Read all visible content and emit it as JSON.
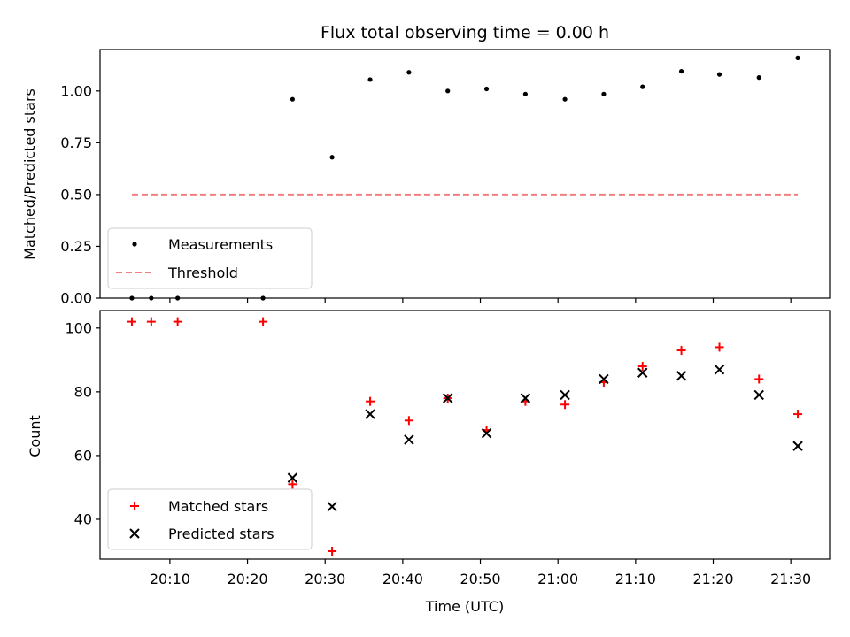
{
  "chart_data": [
    {
      "type": "scatter",
      "title": "Flux total observing time = 0.00 h",
      "xlabel": "",
      "ylabel": "Matched/Predicted stars",
      "ylim": [
        0,
        1.2
      ],
      "yticks": [
        0.0,
        0.25,
        0.5,
        0.75,
        1.0
      ],
      "ytick_labels": [
        "0.00",
        "0.25",
        "0.50",
        "0.75",
        "1.00"
      ],
      "xlim_minutes": [
        1201,
        1295
      ],
      "series": [
        {
          "name": "Measurements",
          "marker": "dot",
          "color": "#000000",
          "x_minutes": [
            1205.1,
            1207.6,
            1211.0,
            1222.0,
            1225.8,
            1230.9,
            1235.8,
            1240.8,
            1245.8,
            1250.8,
            1255.8,
            1260.9,
            1265.9,
            1270.9,
            1275.9,
            1280.8,
            1285.9,
            1290.9
          ],
          "y": [
            0.0,
            0.0,
            0.0,
            0.0,
            0.96,
            0.68,
            1.055,
            1.09,
            1.0,
            1.01,
            0.985,
            0.96,
            0.985,
            1.02,
            1.095,
            1.08,
            1.065,
            1.16
          ]
        },
        {
          "name": "Threshold",
          "marker": "dashed-line",
          "color": "#f08080",
          "x_minutes": [
            1205.1,
            1290.9
          ],
          "y": [
            0.5,
            0.5
          ]
        }
      ],
      "legend": [
        "Measurements",
        "Threshold"
      ],
      "legend_location": "lower-left"
    },
    {
      "type": "scatter",
      "title": "",
      "xlabel": "Time (UTC)",
      "ylabel": "Count",
      "ylim": [
        27.5,
        105.5
      ],
      "yticks": [
        40,
        60,
        80,
        100
      ],
      "ytick_labels": [
        "40",
        "60",
        "80",
        "100"
      ],
      "xlim_minutes": [
        1201,
        1295
      ],
      "xticks_minutes": [
        1210,
        1220,
        1230,
        1240,
        1250,
        1260,
        1270,
        1280,
        1290
      ],
      "xtick_labels": [
        "20:10",
        "20:20",
        "20:30",
        "20:40",
        "20:50",
        "21:00",
        "21:10",
        "21:20",
        "21:30"
      ],
      "series": [
        {
          "name": "Matched stars",
          "marker": "plus",
          "color": "#ff0000",
          "x_minutes": [
            1205.1,
            1207.6,
            1211.0,
            1222.0,
            1225.8,
            1230.9,
            1235.8,
            1240.8,
            1245.8,
            1250.8,
            1255.8,
            1260.9,
            1265.9,
            1270.9,
            1275.9,
            1280.8,
            1285.9,
            1290.9
          ],
          "y": [
            102,
            102,
            102,
            102,
            51,
            30,
            77,
            71,
            78,
            68,
            77,
            76,
            83,
            88,
            93,
            94,
            84,
            73
          ]
        },
        {
          "name": "Predicted stars",
          "marker": "x",
          "color": "#000000",
          "x_minutes": [
            1225.8,
            1230.9,
            1235.8,
            1240.8,
            1245.8,
            1250.8,
            1255.8,
            1260.9,
            1265.9,
            1270.9,
            1275.9,
            1280.8,
            1285.9,
            1290.9
          ],
          "y": [
            53,
            44,
            73,
            65,
            78,
            67,
            78,
            79,
            84,
            86,
            85,
            87,
            79,
            63
          ]
        }
      ],
      "legend": [
        "Matched stars",
        "Predicted stars"
      ],
      "legend_location": "lower-left"
    }
  ]
}
